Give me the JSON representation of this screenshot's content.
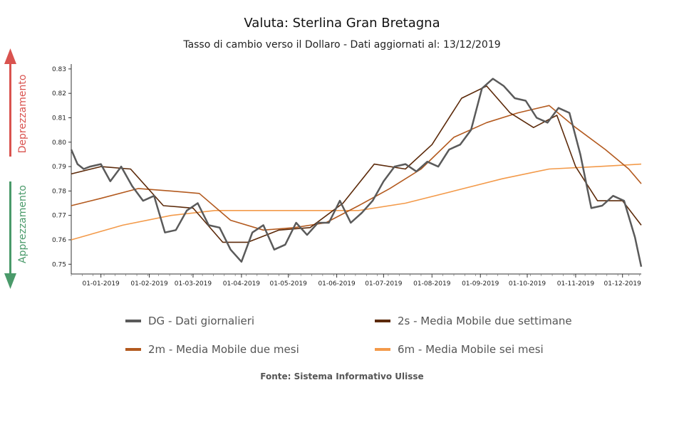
{
  "chart_data": {
    "type": "line",
    "title": "Valuta: Sterlina Gran Bretagna",
    "subtitle": "Tasso di cambio verso il Dollaro - Dati aggiornati al: 13/12/2019",
    "source": "Fonte: Sistema Informativo Ulisse",
    "ylim": [
      0.746,
      0.832
    ],
    "yticks": [
      "0.75",
      "0.76",
      "0.77",
      "0.78",
      "0.79",
      "0.80",
      "0.81",
      "0.82",
      "0.83"
    ],
    "xticks": [
      "01-01-2019",
      "01-02-2019",
      "01-03-2019",
      "01-04-2019",
      "01-05-2019",
      "01-06-2019",
      "01-07-2019",
      "01-08-2019",
      "01-09-2019",
      "01-10-2019",
      "01-11-2019",
      "01-12-2019"
    ],
    "grid": false,
    "legend_position": "bottom",
    "side_labels": {
      "up": "Deprezzamento",
      "down": "Apprezzamento"
    },
    "colors": {
      "up_arrow": "#d9534f",
      "down_arrow": "#4a9a6a"
    },
    "series": [
      {
        "name": "DG - Dati giornalieri",
        "color": "#5a5a5a",
        "x": [
          "2018-12-13",
          "2018-12-17",
          "2018-12-21",
          "2018-12-25",
          "2019-01-01",
          "2019-01-07",
          "2019-01-14",
          "2019-01-21",
          "2019-01-28",
          "2019-02-04",
          "2019-02-11",
          "2019-02-18",
          "2019-02-25",
          "2019-03-04",
          "2019-03-11",
          "2019-03-18",
          "2019-03-25",
          "2019-04-01",
          "2019-04-08",
          "2019-04-15",
          "2019-04-22",
          "2019-04-29",
          "2019-05-06",
          "2019-05-13",
          "2019-05-20",
          "2019-05-27",
          "2019-06-03",
          "2019-06-10",
          "2019-06-17",
          "2019-06-24",
          "2019-07-01",
          "2019-07-08",
          "2019-07-15",
          "2019-07-22",
          "2019-07-29",
          "2019-08-05",
          "2019-08-12",
          "2019-08-19",
          "2019-08-26",
          "2019-09-02",
          "2019-09-09",
          "2019-09-16",
          "2019-09-23",
          "2019-09-30",
          "2019-10-07",
          "2019-10-14",
          "2019-10-21",
          "2019-10-28",
          "2019-11-04",
          "2019-11-11",
          "2019-11-18",
          "2019-11-25",
          "2019-12-02",
          "2019-12-09",
          "2019-12-13"
        ],
        "values": [
          0.797,
          0.791,
          0.789,
          0.79,
          0.791,
          0.784,
          0.79,
          0.782,
          0.776,
          0.778,
          0.763,
          0.764,
          0.772,
          0.775,
          0.766,
          0.765,
          0.756,
          0.751,
          0.763,
          0.766,
          0.756,
          0.758,
          0.767,
          0.762,
          0.767,
          0.767,
          0.776,
          0.767,
          0.771,
          0.776,
          0.784,
          0.79,
          0.791,
          0.788,
          0.792,
          0.79,
          0.797,
          0.799,
          0.805,
          0.822,
          0.826,
          0.823,
          0.818,
          0.817,
          0.81,
          0.808,
          0.814,
          0.812,
          0.795,
          0.773,
          0.774,
          0.778,
          0.776,
          0.761,
          0.749
        ]
      },
      {
        "name": "2s - Media Mobile due settimane",
        "color": "#5c2a0a",
        "x": [
          "2018-12-13",
          "2019-01-01",
          "2019-01-20",
          "2019-02-10",
          "2019-03-01",
          "2019-03-20",
          "2019-04-05",
          "2019-04-25",
          "2019-05-15",
          "2019-06-05",
          "2019-06-25",
          "2019-07-15",
          "2019-08-01",
          "2019-08-20",
          "2019-09-05",
          "2019-09-20",
          "2019-10-05",
          "2019-10-20",
          "2019-11-01",
          "2019-11-15",
          "2019-12-01",
          "2019-12-13"
        ],
        "values": [
          0.787,
          0.79,
          0.789,
          0.774,
          0.773,
          0.759,
          0.759,
          0.764,
          0.765,
          0.775,
          0.791,
          0.789,
          0.799,
          0.818,
          0.823,
          0.812,
          0.806,
          0.811,
          0.79,
          0.776,
          0.776,
          0.766
        ]
      },
      {
        "name": "2m - Media Mobile due mesi",
        "color": "#b35a1f",
        "x": [
          "2018-12-13",
          "2019-01-01",
          "2019-01-25",
          "2019-02-15",
          "2019-03-05",
          "2019-03-25",
          "2019-04-15",
          "2019-05-05",
          "2019-05-25",
          "2019-06-15",
          "2019-07-05",
          "2019-07-25",
          "2019-08-15",
          "2019-09-05",
          "2019-09-25",
          "2019-10-15",
          "2019-11-01",
          "2019-11-20",
          "2019-12-05",
          "2019-12-13"
        ],
        "values": [
          0.774,
          0.777,
          0.781,
          0.78,
          0.779,
          0.768,
          0.764,
          0.765,
          0.767,
          0.774,
          0.781,
          0.789,
          0.802,
          0.808,
          0.812,
          0.815,
          0.806,
          0.797,
          0.789,
          0.783
        ]
      },
      {
        "name": "6m - Media Mobile sei mesi",
        "color": "#f39a4a",
        "x": [
          "2018-12-13",
          "2019-01-15",
          "2019-02-15",
          "2019-03-15",
          "2019-04-15",
          "2019-05-15",
          "2019-06-15",
          "2019-07-15",
          "2019-08-15",
          "2019-09-15",
          "2019-10-15",
          "2019-11-15",
          "2019-12-13"
        ],
        "values": [
          0.76,
          0.766,
          0.77,
          0.772,
          0.772,
          0.772,
          0.772,
          0.775,
          0.78,
          0.785,
          0.789,
          0.79,
          0.791
        ]
      }
    ]
  }
}
